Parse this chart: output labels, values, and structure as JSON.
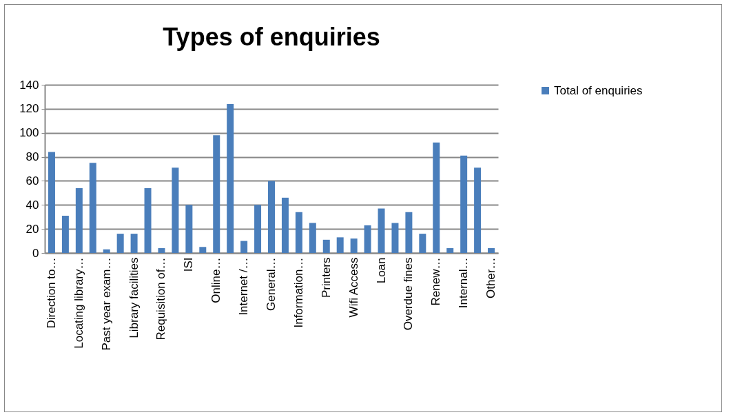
{
  "chart_data": {
    "type": "bar",
    "title": "Types of enquiries",
    "categories": [
      "Direction to…",
      null,
      "Locating library…",
      null,
      "Past year exam…",
      null,
      "Library facilities",
      null,
      "Requisition of…",
      null,
      "ISI",
      null,
      "Online…",
      null,
      "Internet /…",
      null,
      "General…",
      null,
      "Information…",
      null,
      "Printers",
      null,
      "Wifi Access",
      null,
      "Loan",
      null,
      "Overdue fines",
      null,
      "Renew…",
      null,
      "Internal…",
      null,
      "Other…"
    ],
    "series": [
      {
        "name": "Total of enquiries",
        "color": "#4a7ebb",
        "values": [
          84,
          31,
          54,
          75,
          3,
          16,
          16,
          54,
          4,
          71,
          40,
          5,
          98,
          124,
          10,
          40,
          60,
          46,
          34,
          25,
          11,
          13,
          12,
          23,
          37,
          25,
          34,
          16,
          92,
          4,
          81,
          71,
          4
        ]
      }
    ],
    "ylim": [
      0,
      140
    ],
    "yticks": [
      0,
      20,
      40,
      60,
      80,
      100,
      120,
      140
    ],
    "grid": "y",
    "legend": "right"
  }
}
